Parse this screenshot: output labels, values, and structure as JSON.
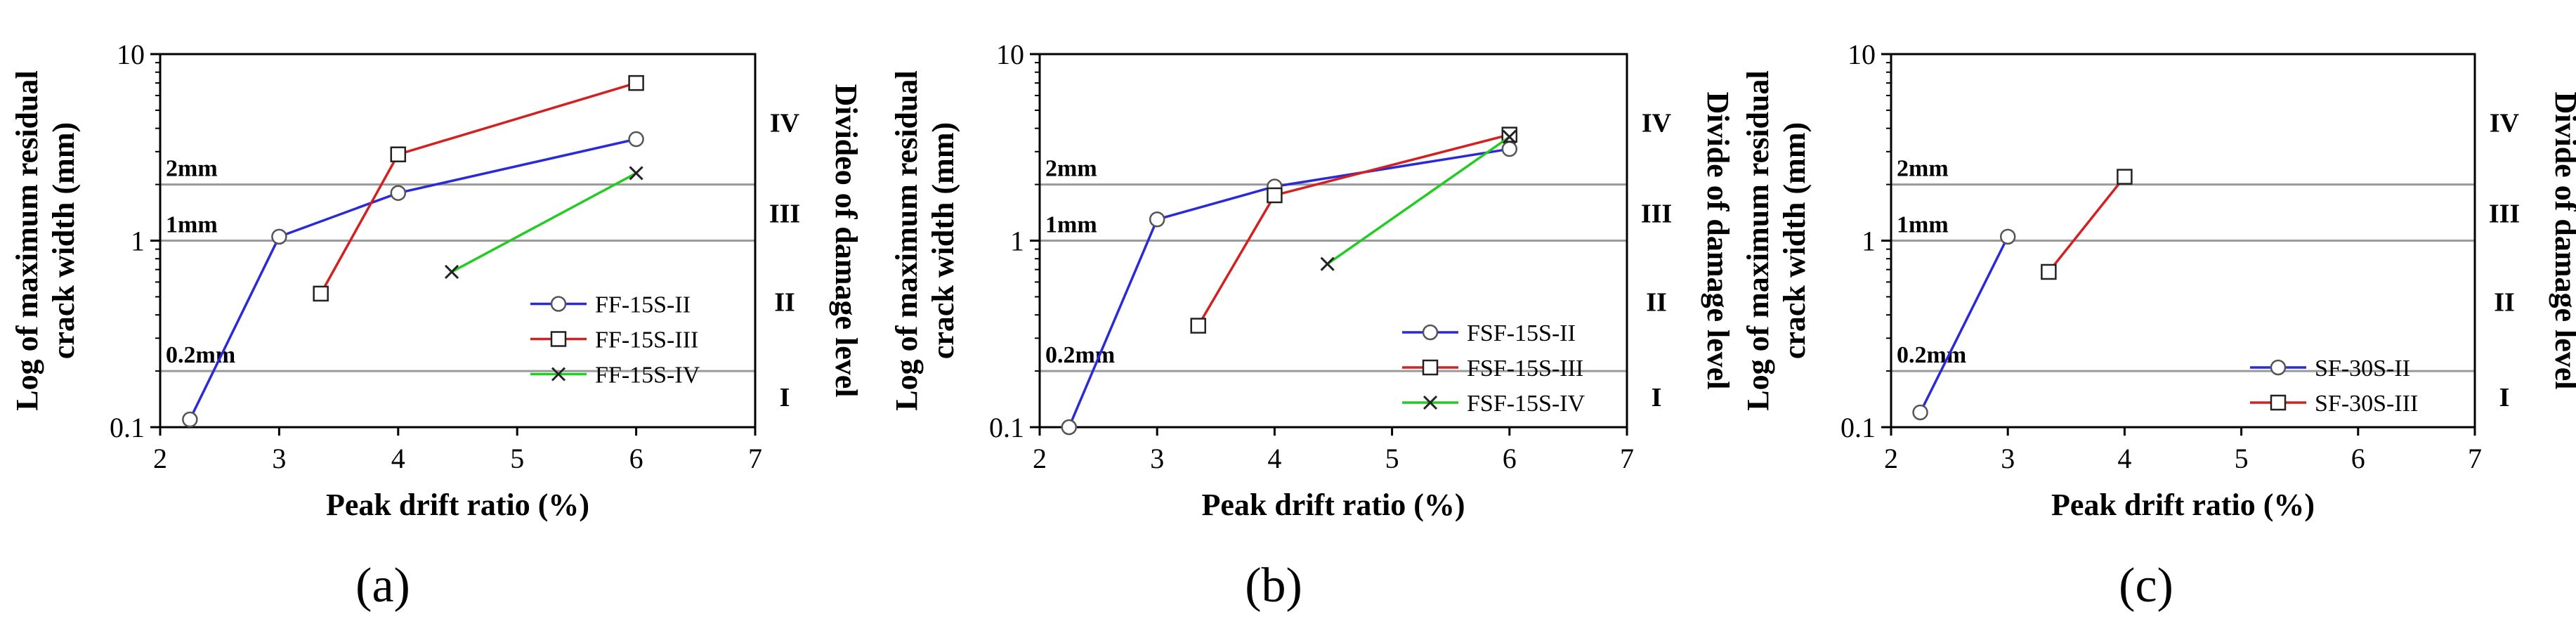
{
  "chart_data": [
    {
      "type": "line",
      "panel": "a",
      "caption": "(a)",
      "xlabel": "Peak drift ratio (%)",
      "ylabel_lines": [
        "Log of maximum residual",
        "crack width (mm)"
      ],
      "right_ylabel": "Divideo of damage level",
      "xlim": [
        2,
        7
      ],
      "ylim": [
        0.1,
        10
      ],
      "yscale": "log",
      "x_ticks": [
        "2",
        "3",
        "4",
        "5",
        "6",
        "7"
      ],
      "y_ticks": [
        "0.1",
        "1",
        "10"
      ],
      "thresholds": [
        {
          "value": 2,
          "label": "2mm"
        },
        {
          "value": 1,
          "label": "1mm"
        },
        {
          "value": 0.2,
          "label": "0.2mm"
        }
      ],
      "damage_levels": [
        {
          "label": "IV",
          "y": 4.3
        },
        {
          "label": "III",
          "y": 1.4
        },
        {
          "label": "II",
          "y": 0.47
        },
        {
          "label": "I",
          "y": 0.145
        }
      ],
      "legend_position": "right-middle",
      "series": [
        {
          "name": "FF-15S-II",
          "color": "#2a2ad8",
          "marker": "circle",
          "x": [
            2.25,
            3,
            4,
            6
          ],
          "y": [
            0.11,
            1.05,
            1.8,
            3.5
          ]
        },
        {
          "name": "FF-15S-III",
          "color": "#d32020",
          "marker": "square",
          "x": [
            3.35,
            4,
            6
          ],
          "y": [
            0.52,
            2.9,
            7.0
          ]
        },
        {
          "name": "FF-15S-IV",
          "color": "#22cc22",
          "marker": "x",
          "x": [
            4.45,
            6
          ],
          "y": [
            0.68,
            2.3
          ]
        }
      ]
    },
    {
      "type": "line",
      "panel": "b",
      "caption": "(b)",
      "xlabel": "Peak drift ratio (%)",
      "ylabel_lines": [
        "Log of maximum residual",
        "crack width (mm)"
      ],
      "right_ylabel": "Divide of damage level",
      "xlim": [
        2,
        7
      ],
      "ylim": [
        0.1,
        10
      ],
      "yscale": "log",
      "x_ticks": [
        "2",
        "3",
        "4",
        "5",
        "6",
        "7"
      ],
      "y_ticks": [
        "0.1",
        "1",
        "10"
      ],
      "thresholds": [
        {
          "value": 2,
          "label": "2mm"
        },
        {
          "value": 1,
          "label": "1mm"
        },
        {
          "value": 0.2,
          "label": "0.2mm"
        }
      ],
      "damage_levels": [
        {
          "label": "IV",
          "y": 4.3
        },
        {
          "label": "III",
          "y": 1.4
        },
        {
          "label": "II",
          "y": 0.47
        },
        {
          "label": "I",
          "y": 0.145
        }
      ],
      "legend_position": "bottom-right",
      "series": [
        {
          "name": "FSF-15S-II",
          "color": "#2a2ad8",
          "marker": "circle",
          "x": [
            2.25,
            3,
            4,
            6
          ],
          "y": [
            0.1,
            1.3,
            1.95,
            3.1
          ]
        },
        {
          "name": "FSF-15S-III",
          "color": "#d32020",
          "marker": "square",
          "x": [
            3.35,
            4,
            6
          ],
          "y": [
            0.35,
            1.75,
            3.7
          ]
        },
        {
          "name": "FSF-15S-IV",
          "color": "#22cc22",
          "marker": "x",
          "x": [
            4.45,
            6
          ],
          "y": [
            0.75,
            3.6
          ]
        }
      ]
    },
    {
      "type": "line",
      "panel": "c",
      "caption": "(c)",
      "xlabel": "Peak drift ratio (%)",
      "ylabel_lines": [
        "Log of maximum residual",
        "crack width (mm)"
      ],
      "right_ylabel": "Divide of damage level",
      "xlim": [
        2,
        7
      ],
      "ylim": [
        0.1,
        10
      ],
      "yscale": "log",
      "x_ticks": [
        "2",
        "3",
        "4",
        "5",
        "6",
        "7"
      ],
      "y_ticks": [
        "0.1",
        "1",
        "10"
      ],
      "thresholds": [
        {
          "value": 2,
          "label": "2mm"
        },
        {
          "value": 1,
          "label": "1mm"
        },
        {
          "value": 0.2,
          "label": "0.2mm"
        }
      ],
      "damage_levels": [
        {
          "label": "IV",
          "y": 4.3
        },
        {
          "label": "III",
          "y": 1.4
        },
        {
          "label": "II",
          "y": 0.47
        },
        {
          "label": "I",
          "y": 0.145
        }
      ],
      "legend_position": "bottom-right",
      "series": [
        {
          "name": "SF-30S-II",
          "color": "#2a2ad8",
          "marker": "circle",
          "x": [
            2.25,
            3
          ],
          "y": [
            0.12,
            1.05
          ]
        },
        {
          "name": "SF-30S-III",
          "color": "#d32020",
          "marker": "square",
          "x": [
            3.35,
            4
          ],
          "y": [
            0.68,
            2.2
          ]
        }
      ]
    }
  ]
}
